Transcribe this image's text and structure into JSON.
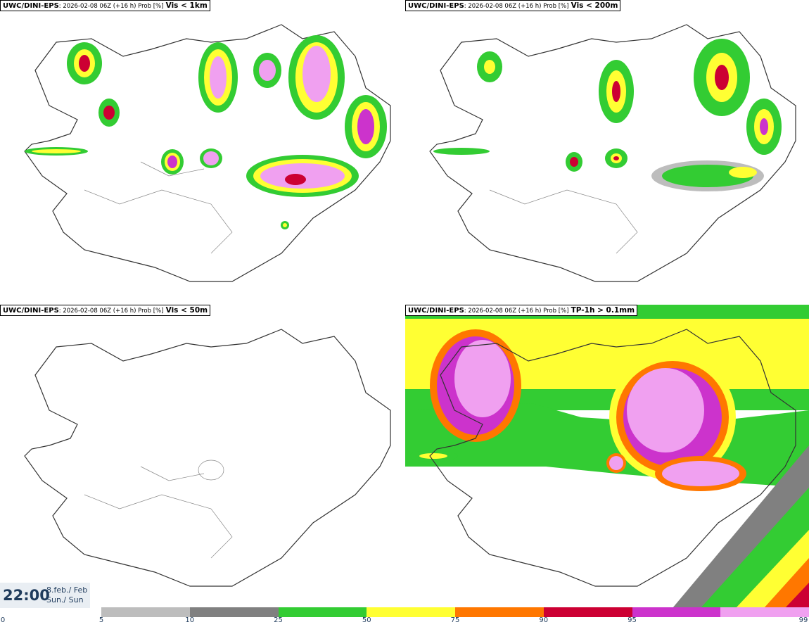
{
  "panels": [
    {
      "model": "UWC/DINI-EPS",
      "meta": ": 2026-02-08 06Z (+16 h) Prob [%]",
      "variable": "Vis < 1km"
    },
    {
      "model": "UWC/DINI-EPS",
      "meta": ": 2026-02-08 06Z (+16 h) Prob [%]",
      "variable": "Vis < 200m"
    },
    {
      "model": "UWC/DINI-EPS",
      "meta": ": 2026-02-08 06Z (+16 h) Prob [%]",
      "variable": "Vis < 50m"
    },
    {
      "model": "UWC/DINI-EPS",
      "meta": ": 2026-02-08 06Z (+16 h) Prob [%]",
      "variable": "TP-1h > 0.1mm"
    }
  ],
  "valid_time": {
    "time": "22:00",
    "date_line1": "8.feb./ Feb",
    "date_line2": "Sun./ Sun"
  },
  "legend": {
    "ticks": [
      "0",
      "5",
      "10",
      "25",
      "50",
      "75",
      "90",
      "95",
      "99"
    ],
    "colors": [
      "#bdbdbd",
      "#808080",
      "#33cc33",
      "#ffff33",
      "#ff7700",
      "#cc0033",
      "#cc33cc",
      "#f0a0f0"
    ]
  }
}
